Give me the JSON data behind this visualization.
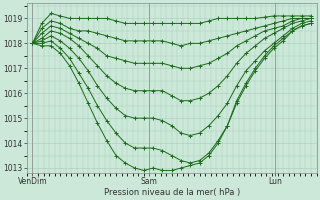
{
  "xlabel": "Pression niveau de la mer( hPa )",
  "background_color": "#cce8d8",
  "plot_bg_color": "#cce8d8",
  "grid_color": "#aaccbb",
  "line_color": "#1a6b1a",
  "marker_color": "#1a6b1a",
  "ylim": [
    1012.8,
    1019.6
  ],
  "yticks": [
    1013,
    1014,
    1015,
    1016,
    1017,
    1018,
    1019
  ],
  "xtick_labels": [
    "VenDim",
    "Sam",
    "Lun"
  ],
  "xtick_positions": [
    0.0,
    0.42,
    0.87
  ],
  "series": [
    [
      1018.0,
      1018.8,
      1019.2,
      1019.1,
      1019.0,
      1019.0,
      1019.0,
      1019.0,
      1019.0,
      1018.9,
      1018.8,
      1018.8,
      1018.8,
      1018.8,
      1018.8,
      1018.8,
      1018.8,
      1018.8,
      1018.8,
      1018.9,
      1019.0,
      1019.0,
      1019.0,
      1019.0,
      1019.0,
      1019.05,
      1019.1,
      1019.1,
      1019.1,
      1019.1,
      1019.1
    ],
    [
      1018.0,
      1018.6,
      1018.9,
      1018.8,
      1018.6,
      1018.5,
      1018.5,
      1018.4,
      1018.3,
      1018.2,
      1018.1,
      1018.1,
      1018.1,
      1018.1,
      1018.1,
      1018.0,
      1017.9,
      1018.0,
      1018.0,
      1018.1,
      1018.2,
      1018.3,
      1018.4,
      1018.5,
      1018.6,
      1018.7,
      1018.8,
      1018.9,
      1019.0,
      1019.0,
      1019.0
    ],
    [
      1018.0,
      1018.4,
      1018.7,
      1018.6,
      1018.4,
      1018.2,
      1018.0,
      1017.8,
      1017.5,
      1017.4,
      1017.3,
      1017.2,
      1017.2,
      1017.2,
      1017.2,
      1017.1,
      1017.0,
      1017.0,
      1017.1,
      1017.2,
      1017.4,
      1017.6,
      1017.9,
      1018.1,
      1018.3,
      1018.5,
      1018.6,
      1018.7,
      1018.9,
      1019.0,
      1019.0
    ],
    [
      1018.0,
      1018.2,
      1018.5,
      1018.4,
      1018.2,
      1017.9,
      1017.5,
      1017.1,
      1016.7,
      1016.4,
      1016.2,
      1016.1,
      1016.1,
      1016.1,
      1016.1,
      1015.9,
      1015.7,
      1015.7,
      1015.8,
      1016.0,
      1016.3,
      1016.7,
      1017.2,
      1017.6,
      1017.9,
      1018.2,
      1018.4,
      1018.6,
      1018.8,
      1018.9,
      1019.0
    ],
    [
      1018.0,
      1018.1,
      1018.3,
      1018.1,
      1017.8,
      1017.4,
      1016.9,
      1016.3,
      1015.8,
      1015.4,
      1015.1,
      1015.0,
      1015.0,
      1015.0,
      1014.9,
      1014.7,
      1014.4,
      1014.3,
      1014.4,
      1014.7,
      1015.1,
      1015.6,
      1016.3,
      1016.9,
      1017.3,
      1017.7,
      1018.0,
      1018.3,
      1018.6,
      1018.8,
      1018.9
    ],
    [
      1018.0,
      1018.0,
      1018.1,
      1017.8,
      1017.4,
      1016.8,
      1016.2,
      1015.5,
      1014.9,
      1014.4,
      1014.0,
      1013.8,
      1013.8,
      1013.8,
      1013.7,
      1013.5,
      1013.3,
      1013.2,
      1013.3,
      1013.6,
      1014.1,
      1014.7,
      1015.6,
      1016.3,
      1016.9,
      1017.4,
      1017.8,
      1018.1,
      1018.5,
      1018.7,
      1018.8
    ],
    [
      1018.0,
      1017.9,
      1017.9,
      1017.6,
      1017.1,
      1016.4,
      1015.6,
      1014.8,
      1014.1,
      1013.5,
      1013.2,
      1013.0,
      1012.9,
      1013.0,
      1012.9,
      1012.9,
      1013.0,
      1013.1,
      1013.2,
      1013.5,
      1014.0,
      1014.7,
      1015.7,
      1016.4,
      1017.0,
      1017.5,
      1017.9,
      1018.2,
      1018.5,
      1018.7,
      1018.8
    ]
  ]
}
